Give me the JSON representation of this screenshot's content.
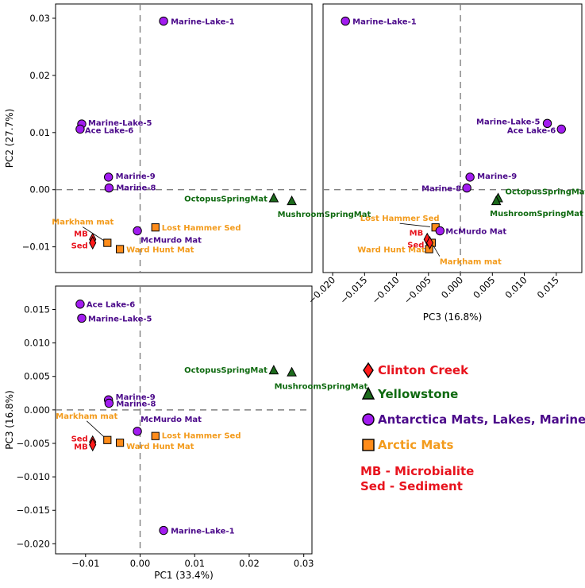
{
  "chart_data": [
    {
      "id": "pc1_pc2",
      "type": "scatter",
      "title": "",
      "xlabel": "",
      "ylabel": "PC2 (27.7%)",
      "xlim": [
        -0.0155,
        0.0315
      ],
      "ylim": [
        -0.0145,
        0.0325
      ],
      "xticks": [],
      "yticks": [
        {
          "v": 0.03,
          "label": "0.03"
        },
        {
          "v": 0.02,
          "label": "0.02"
        },
        {
          "v": 0.01,
          "label": "0.01"
        },
        {
          "v": 0.0,
          "label": "0.00"
        },
        {
          "v": -0.01,
          "label": "−0.01"
        }
      ],
      "points": [
        {
          "x": 0.0043,
          "y": 0.0295,
          "group": "antarctica",
          "label": "Marine-Lake-1"
        },
        {
          "x": -0.0107,
          "y": 0.0115,
          "group": "antarctica",
          "label": "Marine-Lake-5"
        },
        {
          "x": -0.011,
          "y": 0.0106,
          "group": "antarctica",
          "label": "Ace Lake-6"
        },
        {
          "x": -0.0058,
          "y": 0.0022,
          "group": "antarctica",
          "label": "Marine-9"
        },
        {
          "x": -0.0057,
          "y": 0.0003,
          "group": "antarctica",
          "label": "Marine-8"
        },
        {
          "x": 0.0245,
          "y": -0.0015,
          "group": "yellowstone",
          "label": "OctopusSpringMat"
        },
        {
          "x": 0.0278,
          "y": -0.002,
          "group": "yellowstone",
          "label": "MushroomSpringMat"
        },
        {
          "x": 0.0028,
          "y": -0.0066,
          "group": "arctic",
          "label": "Lost Hammer Sed"
        },
        {
          "x": -0.0005,
          "y": -0.0072,
          "group": "antarctica",
          "label": "McMurdo Mat"
        },
        {
          "x": -0.006,
          "y": -0.0093,
          "group": "arctic",
          "label": "Markham mat"
        },
        {
          "x": -0.0037,
          "y": -0.0104,
          "group": "arctic",
          "label": "Ward Hunt Mat"
        },
        {
          "x": -0.0087,
          "y": -0.0087,
          "group": "clinton",
          "label": "MB"
        },
        {
          "x": -0.0087,
          "y": -0.0093,
          "group": "clinton",
          "label": "Sed"
        }
      ]
    },
    {
      "id": "pc3_pc2",
      "type": "scatter",
      "title": "",
      "xlabel": "PC3 (16.8%)",
      "ylabel": "",
      "xlim": [
        -0.0215,
        0.019
      ],
      "ylim": [
        -0.0145,
        0.0325
      ],
      "xticks": [
        {
          "v": -0.02,
          "label": "−0.020"
        },
        {
          "v": -0.015,
          "label": "−0.015"
        },
        {
          "v": -0.01,
          "label": "−0.010"
        },
        {
          "v": -0.005,
          "label": "−0.005"
        },
        {
          "v": 0.0,
          "label": "0.000"
        },
        {
          "v": 0.005,
          "label": "0.005"
        },
        {
          "v": 0.01,
          "label": "0.010"
        },
        {
          "v": 0.015,
          "label": "0.015"
        }
      ],
      "yticks": [],
      "points": [
        {
          "x": -0.018,
          "y": 0.0295,
          "group": "antarctica",
          "label": "Marine-Lake-1"
        },
        {
          "x": 0.0136,
          "y": 0.0116,
          "group": "antarctica",
          "label": "Marine-Lake-5"
        },
        {
          "x": 0.0158,
          "y": 0.0106,
          "group": "antarctica",
          "label": "Ace Lake-6"
        },
        {
          "x": 0.0015,
          "y": 0.0022,
          "group": "antarctica",
          "label": "Marine-9"
        },
        {
          "x": 0.001,
          "y": 0.0003,
          "group": "antarctica",
          "label": "Marine-8"
        },
        {
          "x": 0.0059,
          "y": -0.0015,
          "group": "yellowstone",
          "label": "OctopusSpringMat"
        },
        {
          "x": 0.0056,
          "y": -0.002,
          "group": "yellowstone",
          "label": "MushroomSpringMat"
        },
        {
          "x": -0.0039,
          "y": -0.0066,
          "group": "arctic",
          "label": "Lost Hammer Sed"
        },
        {
          "x": -0.0032,
          "y": -0.0072,
          "group": "antarctica",
          "label": "McMurdo Mat"
        },
        {
          "x": -0.0045,
          "y": -0.0093,
          "group": "arctic",
          "label": "Markham mat"
        },
        {
          "x": -0.0049,
          "y": -0.0104,
          "group": "arctic",
          "label": "Ward Hunt Mat"
        },
        {
          "x": -0.0052,
          "y": -0.0087,
          "group": "clinton",
          "label": "MB"
        },
        {
          "x": -0.0048,
          "y": -0.0093,
          "group": "clinton",
          "label": "Sed"
        }
      ]
    },
    {
      "id": "pc1_pc3",
      "type": "scatter",
      "title": "",
      "xlabel": "PC1 (33.4%)",
      "ylabel": "PC3 (16.8%)",
      "xlim": [
        -0.0155,
        0.0315
      ],
      "ylim": [
        -0.0215,
        0.0185
      ],
      "xticks": [
        {
          "v": -0.01,
          "label": "−0.01"
        },
        {
          "v": 0.0,
          "label": "0.00"
        },
        {
          "v": 0.01,
          "label": "0.01"
        },
        {
          "v": 0.02,
          "label": "0.02"
        },
        {
          "v": 0.03,
          "label": "0.03"
        }
      ],
      "yticks": [
        {
          "v": 0.015,
          "label": "0.015"
        },
        {
          "v": 0.01,
          "label": "0.010"
        },
        {
          "v": 0.005,
          "label": "0.005"
        },
        {
          "v": 0.0,
          "label": "0.000"
        },
        {
          "v": -0.005,
          "label": "−0.005"
        },
        {
          "v": -0.01,
          "label": "−0.010"
        },
        {
          "v": -0.015,
          "label": "−0.015"
        },
        {
          "v": -0.02,
          "label": "−0.020"
        }
      ],
      "points": [
        {
          "x": -0.011,
          "y": 0.0158,
          "group": "antarctica",
          "label": "Ace Lake-6"
        },
        {
          "x": -0.0107,
          "y": 0.0137,
          "group": "antarctica",
          "label": "Marine-Lake-5"
        },
        {
          "x": 0.0245,
          "y": 0.0059,
          "group": "yellowstone",
          "label": "OctopusSpringMat"
        },
        {
          "x": 0.0278,
          "y": 0.0056,
          "group": "yellowstone",
          "label": "MushroomSpringMat"
        },
        {
          "x": -0.0058,
          "y": 0.0015,
          "group": "antarctica",
          "label": "Marine-9"
        },
        {
          "x": -0.0057,
          "y": 0.001,
          "group": "antarctica",
          "label": "Marine-8"
        },
        {
          "x": -0.0005,
          "y": -0.0032,
          "group": "antarctica",
          "label": "McMurdo Mat"
        },
        {
          "x": 0.0028,
          "y": -0.0039,
          "group": "arctic",
          "label": "Lost Hammer Sed"
        },
        {
          "x": -0.006,
          "y": -0.0045,
          "group": "arctic",
          "label": "Markham mat"
        },
        {
          "x": -0.0037,
          "y": -0.0049,
          "group": "arctic",
          "label": "Ward Hunt Mat"
        },
        {
          "x": -0.0087,
          "y": -0.0048,
          "group": "clinton",
          "label": "Sed"
        },
        {
          "x": -0.0087,
          "y": -0.0052,
          "group": "clinton",
          "label": "MB"
        },
        {
          "x": 0.0043,
          "y": -0.018,
          "group": "antarctica",
          "label": "Marine-Lake-1"
        }
      ]
    }
  ],
  "groups": {
    "clinton": {
      "label": "Clinton Creek",
      "marker": "diamond",
      "fill": "#ff1a1a",
      "text": "#e8131d"
    },
    "yellowstone": {
      "label": "Yellowstone",
      "marker": "triangle",
      "fill": "#1c6b1c",
      "text": "#0f6a10"
    },
    "antarctica": {
      "label": "Antarctica Mats, Lakes, Marine",
      "marker": "circle",
      "fill": "#a21cf0",
      "text": "#4b0a8a"
    },
    "arctic": {
      "label": "Arctic Mats",
      "marker": "square",
      "fill": "#ff8c1a",
      "text": "#f39b1c"
    }
  },
  "legend": {
    "entries": [
      "clinton",
      "yellowstone",
      "antarctica",
      "arctic"
    ],
    "notes": [
      "MB - Microbialite",
      "Sed - Sediment"
    ],
    "notes_color": "#e8131d"
  }
}
